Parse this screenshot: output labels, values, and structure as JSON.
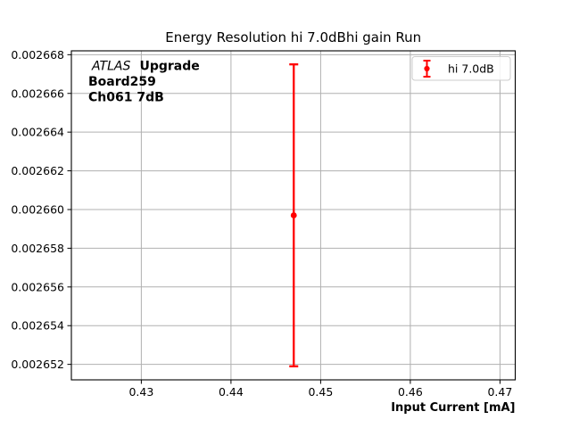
{
  "figure": {
    "background": "#ffffff",
    "frame_color": "#000000"
  },
  "chart_data": {
    "type": "scatter",
    "title": "Energy Resolution hi 7.0dBhi gain Run",
    "xlabel": "Input Current [mA]",
    "ylabel": "",
    "xlim": [
      0.4222,
      0.4717
    ],
    "ylim": [
      0.0026512,
      0.0026682
    ],
    "xticks": [
      0.43,
      0.44,
      0.45,
      0.46,
      0.47
    ],
    "yticks": [
      0.002652,
      0.002654,
      0.002656,
      0.002658,
      0.00266,
      0.002662,
      0.002664,
      0.002666,
      0.002668
    ],
    "xtick_decimals": 2,
    "ytick_decimals": 6,
    "grid": true,
    "grid_color": "#b0b0b0",
    "legend_position": "upper right",
    "series": [
      {
        "name": "hi 7.0dB",
        "color": "#ff0000",
        "marker": "circle",
        "points": [
          {
            "x": 0.447,
            "y": 0.0026597,
            "yerr": 7.8e-06
          }
        ]
      }
    ],
    "legend": {
      "entries": [
        "hi 7.0dB"
      ]
    },
    "annotation": {
      "atlas": "ATLAS",
      "upgrade": "Upgrade",
      "line2": "Board259",
      "line3": "Ch061 7dB"
    }
  }
}
